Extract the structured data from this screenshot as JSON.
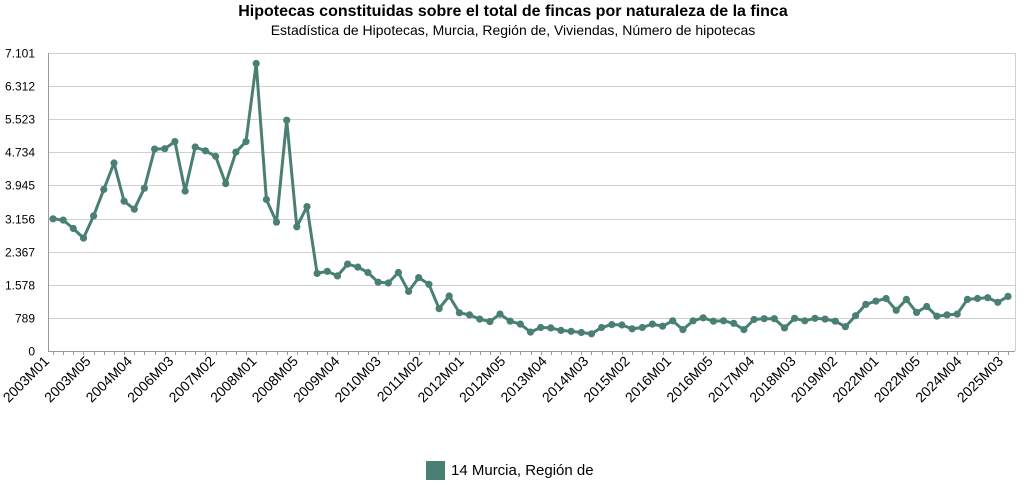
{
  "title": "Hipotecas constituidas sobre el total de fincas por naturaleza de la finca",
  "subtitle": "Estadística de Hipotecas, Murcia, Región de, Viviendas, Número de hipotecas",
  "legend": {
    "label": "14 Murcia, Región de"
  },
  "colors": {
    "series": "#4a7f74",
    "grid": "#d0d0d0",
    "axis": "#999999"
  },
  "chart_data": {
    "type": "line",
    "title": "Hipotecas constituidas sobre el total de fincas por naturaleza de la finca",
    "subtitle": "Estadística de Hipotecas, Murcia, Región de, Viviendas, Número de hipotecas",
    "xlabel": "",
    "ylabel": "",
    "ylim": [
      0,
      7101
    ],
    "yticks": [
      0,
      789,
      1578,
      2367,
      3156,
      3945,
      4734,
      5523,
      6312,
      7101
    ],
    "ytick_labels": [
      "0",
      "789",
      "1.578",
      "2.367",
      "3.156",
      "3.945",
      "4.734",
      "5.523",
      "6.312",
      "7.101"
    ],
    "xtick_labels": [
      "2003M01",
      "2003M05",
      "2004M04",
      "2006M03",
      "2007M02",
      "2008M01",
      "2008M05",
      "2009M04",
      "2010M03",
      "2011M02",
      "2012M01",
      "2012M05",
      "2013M04",
      "2014M03",
      "2015M02",
      "2016M01",
      "2016M05",
      "2017M04",
      "2018M03",
      "2019M02",
      "2022M01",
      "2022M05",
      "2024M04",
      "2025M03"
    ],
    "grid": true,
    "legend_position": "bottom",
    "series": [
      {
        "name": "14 Murcia, Región de",
        "values": [
          3150,
          3120,
          2920,
          2690,
          3220,
          3850,
          4480,
          3570,
          3380,
          3880,
          4810,
          4820,
          4990,
          3810,
          4860,
          4770,
          4640,
          3990,
          4740,
          4990,
          6850,
          3610,
          3070,
          5500,
          2960,
          3440,
          1850,
          1900,
          1790,
          2070,
          2000,
          1870,
          1640,
          1620,
          1870,
          1420,
          1750,
          1590,
          1010,
          1310,
          910,
          860,
          760,
          700,
          880,
          710,
          640,
          450,
          560,
          550,
          490,
          470,
          440,
          410,
          560,
          630,
          620,
          530,
          560,
          640,
          590,
          720,
          510,
          720,
          790,
          710,
          720,
          660,
          510,
          750,
          770,
          770,
          550,
          780,
          720,
          780,
          760,
          710,
          580,
          840,
          1110,
          1190,
          1250,
          970,
          1230,
          920,
          1060,
          830,
          860,
          880,
          1230,
          1250,
          1270,
          1160,
          1300
        ]
      }
    ]
  }
}
